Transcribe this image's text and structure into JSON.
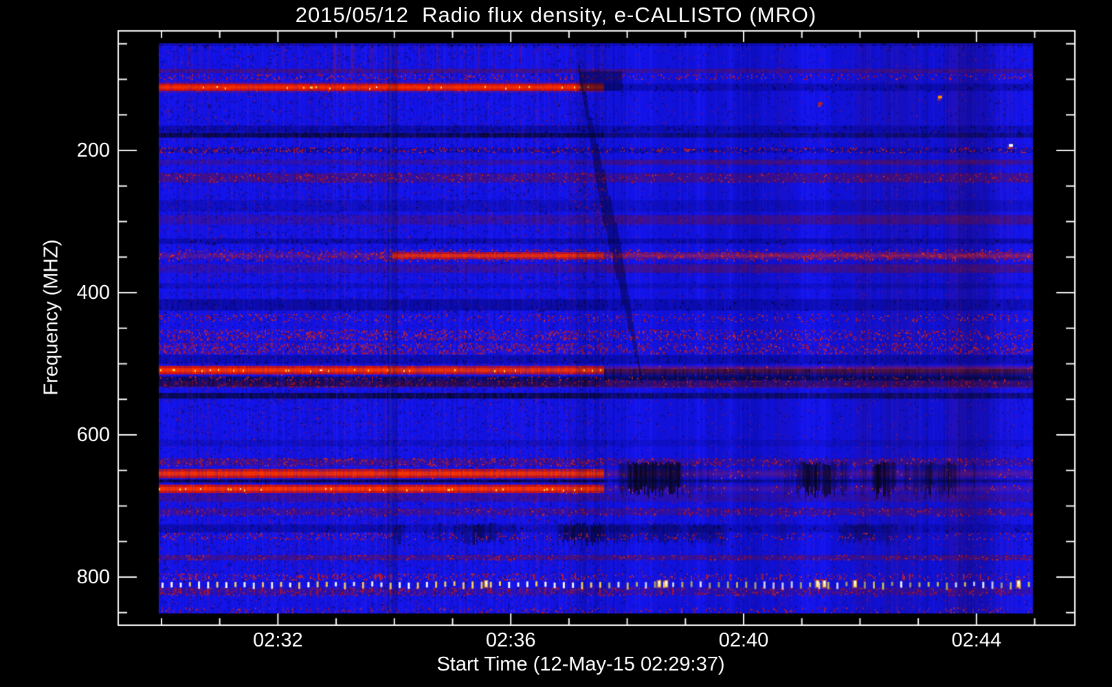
{
  "title": "2015/05/12  Radio flux density, e-CALLISTO (MRO)",
  "chart_data": {
    "type": "heatmap",
    "title": "2015/05/12  Radio flux density, e-CALLISTO (MRO)",
    "xlabel": "Start Time (12-May-15 02:29:37)",
    "ylabel": "Frequency (MHZ)",
    "instrument": "e-CALLISTO (MRO)",
    "date": "2015/05/12",
    "start_time": "02:29:37",
    "x_axis": {
      "major_ticks": [
        {
          "label": "02:32",
          "minutes": 2
        },
        {
          "label": "02:36",
          "minutes": 6
        },
        {
          "label": "02:40",
          "minutes": 10
        },
        {
          "label": "02:44",
          "minutes": 14
        }
      ],
      "minor_tick_minutes": [
        0,
        1,
        3,
        4,
        5,
        7,
        8,
        9,
        11,
        12,
        13,
        15
      ],
      "duration_minutes": 15
    },
    "y_axis": {
      "major_ticks": [
        {
          "label": "200",
          "mhz": 200
        },
        {
          "label": "400",
          "mhz": 400
        },
        {
          "label": "600",
          "mhz": 600
        },
        {
          "label": "800",
          "mhz": 800
        }
      ],
      "minor_tick_mhz": [
        50,
        100,
        150,
        250,
        300,
        350,
        450,
        500,
        550,
        650,
        700,
        750,
        850
      ],
      "range_mhz": [
        49,
        851
      ],
      "inverted": true
    },
    "colormap": {
      "base_blue": "#1414ed",
      "red": "#dd1400",
      "bright_red": "#ff3c00",
      "yellow": "#ffd24a",
      "white": "#ffffff",
      "maroon": "#6e0e1d",
      "navy": "#05057a",
      "black": "#04040e",
      "frame": "#ffffff"
    },
    "segments": [
      {
        "name": "early-structured",
        "t_frac": [
          0,
          0.266
        ]
      },
      {
        "name": "mid-structured",
        "t_frac": [
          0.266,
          0.509
        ]
      },
      {
        "name": "late-smooth",
        "t_frac": [
          0.509,
          1
        ]
      }
    ],
    "bands": [
      {
        "f": [
          49,
          53
        ],
        "type": "navy",
        "i": [
          0.45,
          0.45,
          0.35
        ]
      },
      {
        "f": [
          85,
          91
        ],
        "type": "maroon",
        "i": [
          0.6,
          0.6,
          0.5
        ]
      },
      {
        "f": [
          93,
          100
        ],
        "type": "red_speckle",
        "i": [
          0.5,
          0.5,
          0.35
        ]
      },
      {
        "f": [
          106,
          116
        ],
        "type": "navy",
        "i": [
          0,
          0,
          0.5
        ]
      },
      {
        "f": [
          106,
          116
        ],
        "type": "red_bright",
        "i": [
          1,
          1.1,
          0
        ],
        "t": [
          0,
          0.52
        ],
        "hot": true
      },
      {
        "f": [
          165,
          174
        ],
        "type": "navy",
        "i": [
          0.7,
          0.7,
          0.5
        ]
      },
      {
        "f": [
          175,
          182
        ],
        "type": "black",
        "i": [
          0.8,
          0.8,
          0.45
        ]
      },
      {
        "f": [
          196,
          203
        ],
        "type": "navy",
        "i": [
          0.5,
          0.5,
          0.4
        ]
      },
      {
        "f": [
          196,
          203
        ],
        "type": "red_speckle",
        "i": [
          0.6,
          0.55,
          0.45
        ]
      },
      {
        "f": [
          213,
          220
        ],
        "type": "maroon",
        "i": [
          0.3,
          0.35,
          0.6
        ]
      },
      {
        "f": [
          232,
          245
        ],
        "type": "maroon",
        "i": [
          0.6,
          0.5,
          0.55
        ]
      },
      {
        "f": [
          232,
          245
        ],
        "type": "red_speckle",
        "i": [
          0.3,
          0.25,
          0.2
        ]
      },
      {
        "f": [
          270,
          286
        ],
        "type": "dark",
        "i": [
          0.35,
          0.35,
          0.3
        ]
      },
      {
        "f": [
          291,
          304
        ],
        "type": "maroon",
        "i": [
          0.3,
          0.4,
          0.6
        ]
      },
      {
        "f": [
          324,
          331
        ],
        "type": "navy",
        "i": [
          0.6,
          0.6,
          0.6
        ]
      },
      {
        "f": [
          339,
          356
        ],
        "type": "red_speckle",
        "i": [
          0.4,
          0.6,
          0.4
        ]
      },
      {
        "f": [
          343,
          353
        ],
        "type": "red",
        "i": [
          0.15,
          0.8,
          0.3
        ]
      },
      {
        "f": [
          360,
          372
        ],
        "type": "maroon",
        "i": [
          0.25,
          0.35,
          0.6
        ]
      },
      {
        "f": [
          387,
          394
        ],
        "type": "dark",
        "i": [
          0.35,
          0.35,
          0.35
        ]
      },
      {
        "f": [
          409,
          425
        ],
        "type": "navy",
        "i": [
          0.75,
          0.75,
          0.5
        ]
      },
      {
        "f": [
          430,
          440
        ],
        "type": "red_speckle",
        "i": [
          0.4,
          0.35,
          0.3
        ]
      },
      {
        "f": [
          452,
          467
        ],
        "type": "red_speckle",
        "i": [
          0.75,
          0.65,
          0.55
        ]
      },
      {
        "f": [
          471,
          485
        ],
        "type": "red_speckle",
        "i": [
          0.85,
          0.75,
          0.6
        ]
      },
      {
        "f": [
          488,
          500
        ],
        "type": "navy",
        "i": [
          0.6,
          0.6,
          0.55
        ]
      },
      {
        "f": [
          503,
          515
        ],
        "type": "red",
        "i": [
          1,
          0.85,
          0.3
        ],
        "hot": true
      },
      {
        "f": [
          507,
          523
        ],
        "type": "black",
        "i": [
          0,
          0,
          0.5
        ]
      },
      {
        "f": [
          518,
          532
        ],
        "type": "black",
        "i": [
          0.65,
          0.65,
          0.3
        ]
      },
      {
        "f": [
          518,
          532
        ],
        "type": "red_speckle",
        "i": [
          0.35,
          0.3,
          0.25
        ]
      },
      {
        "f": [
          524,
          534
        ],
        "type": "maroon",
        "i": [
          0.3,
          0.3,
          0.5
        ]
      },
      {
        "f": [
          541,
          549
        ],
        "type": "black",
        "i": [
          0.8,
          0.8,
          0.55
        ]
      },
      {
        "f": [
          607,
          616
        ],
        "type": "dark",
        "i": [
          0.3,
          0.3,
          0.25
        ]
      },
      {
        "f": [
          633,
          643
        ],
        "type": "maroon",
        "i": [
          0.4,
          0.35,
          0.3
        ]
      },
      {
        "f": [
          633,
          643
        ],
        "type": "red_speckle",
        "i": [
          0.55,
          0.5,
          0.3
        ]
      },
      {
        "f": [
          648,
          661
        ],
        "type": "red",
        "i": [
          0.9,
          0.9,
          0.15
        ]
      },
      {
        "f": [
          663,
          667
        ],
        "type": "black",
        "i": [
          0.85,
          0.85,
          0.35
        ]
      },
      {
        "f": [
          670,
          682
        ],
        "type": "red",
        "i": [
          1,
          1,
          0.12
        ],
        "hot": true
      },
      {
        "f": [
          640,
          686
        ],
        "type": "blotch",
        "i": [
          0,
          0,
          0.8
        ]
      },
      {
        "f": [
          683,
          694
        ],
        "type": "maroon",
        "i": [
          0.45,
          0.4,
          0.3
        ]
      },
      {
        "f": [
          703,
          713
        ],
        "type": "maroon",
        "i": [
          0.4,
          0.4,
          0.4
        ]
      },
      {
        "f": [
          703,
          713
        ],
        "type": "red_speckle",
        "i": [
          0.25,
          0.2,
          0.25
        ]
      },
      {
        "f": [
          726,
          737
        ],
        "type": "navy",
        "i": [
          0.6,
          0.3,
          0.3
        ]
      },
      {
        "f": [
          726,
          752
        ],
        "type": "blotch",
        "i": [
          0,
          0.6,
          0.35
        ]
      },
      {
        "f": [
          738,
          747
        ],
        "type": "red_speckle",
        "i": [
          0.5,
          0.3,
          0.3
        ]
      },
      {
        "f": [
          769,
          776
        ],
        "type": "maroon",
        "i": [
          0.55,
          0.5,
          0.5
        ]
      },
      {
        "f": [
          769,
          776
        ],
        "type": "red_speckle",
        "i": [
          0.3,
          0.25,
          0.25
        ]
      },
      {
        "f": [
          795,
          803
        ],
        "type": "red_speckle",
        "i": [
          0.6,
          0.5,
          0.4
        ]
      },
      {
        "f": [
          815,
          825
        ],
        "type": "red_speckle",
        "i": [
          0.55,
          0.45,
          0.4
        ]
      },
      {
        "f": [
          815,
          825
        ],
        "type": "maroon",
        "i": [
          0.35,
          0.3,
          0.3
        ]
      },
      {
        "f": [
          843,
          850
        ],
        "type": "red_speckle",
        "i": [
          0.35,
          0.3,
          0.3
        ]
      }
    ],
    "dash_row": {
      "f": [
        805,
        814
      ],
      "period_seconds": 9.4,
      "bright_t_frac": [
        0.373,
        0.571,
        0.579,
        0.752,
        0.76,
        0.795,
        0.982
      ]
    },
    "sparks": [
      {
        "t_frac": 0.893,
        "mhz": 125,
        "color": "#ff9000"
      },
      {
        "t_frac": 0.756,
        "mhz": 134,
        "color": "#cc2000"
      },
      {
        "t_frac": 0.974,
        "mhz": 193,
        "color": "#ffffff"
      }
    ]
  }
}
